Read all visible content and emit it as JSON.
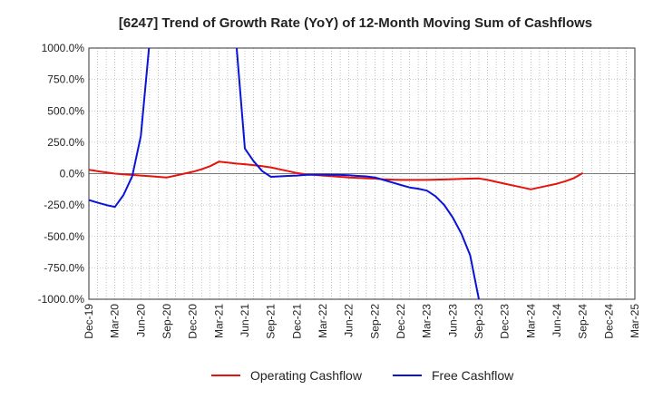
{
  "chart_data": {
    "type": "line",
    "title": "[6247]  Trend of Growth Rate (YoY) of 12-Month Moving Sum of Cashflows",
    "xlabel": "",
    "ylabel": "",
    "x_ticks": [
      "Dec-19",
      "Mar-20",
      "Jun-20",
      "Sep-20",
      "Dec-20",
      "Mar-21",
      "Jun-21",
      "Sep-21",
      "Dec-21",
      "Mar-22",
      "Jun-22",
      "Sep-22",
      "Dec-22",
      "Mar-23",
      "Jun-23",
      "Sep-23",
      "Dec-23",
      "Mar-24",
      "Jun-24",
      "Sep-24",
      "Dec-24",
      "Mar-25"
    ],
    "y_ticks": [
      "1000.0%",
      "750.0%",
      "500.0%",
      "250.0%",
      "0.0%",
      "-250.0%",
      "-500.0%",
      "-750.0%",
      "-1000.0%"
    ],
    "ylim": [
      -1000,
      1000
    ],
    "grid": true,
    "legend_position": "bottom",
    "series": [
      {
        "name": "Operating Cashflow",
        "color": "#e8120c",
        "x": [
          "2019-12",
          "2020-01",
          "2020-02",
          "2020-03",
          "2020-04",
          "2020-05",
          "2020-06",
          "2020-07",
          "2020-08",
          "2020-09",
          "2020-10",
          "2020-11",
          "2020-12",
          "2021-01",
          "2021-02",
          "2021-03",
          "2021-04",
          "2021-05",
          "2021-06",
          "2021-07",
          "2021-08",
          "2021-09",
          "2021-10",
          "2021-11",
          "2021-12",
          "2022-01",
          "2022-02",
          "2022-03",
          "2022-04",
          "2022-05",
          "2022-06",
          "2022-07",
          "2022-08",
          "2022-09",
          "2022-10",
          "2022-11",
          "2022-12",
          "2023-01",
          "2023-02",
          "2023-03",
          "2023-04",
          "2023-05",
          "2023-06",
          "2023-07",
          "2023-08",
          "2023-09",
          "2023-10",
          "2023-11",
          "2023-12",
          "2024-01",
          "2024-02",
          "2024-03",
          "2024-04",
          "2024-05",
          "2024-06",
          "2024-07",
          "2024-08",
          "2024-09"
        ],
        "values": [
          30,
          20,
          10,
          0,
          -5,
          -10,
          -15,
          -20,
          -25,
          -30,
          -15,
          0,
          15,
          35,
          60,
          95,
          88,
          80,
          75,
          68,
          60,
          50,
          35,
          20,
          5,
          -5,
          -10,
          -15,
          -20,
          -25,
          -30,
          -33,
          -37,
          -40,
          -45,
          -48,
          -50,
          -50,
          -50,
          -50,
          -48,
          -46,
          -44,
          -42,
          -40,
          -38,
          -50,
          -65,
          -80,
          -95,
          -110,
          -125,
          -110,
          -95,
          -80,
          -60,
          -35,
          5
        ]
      },
      {
        "name": "Free Cashflow",
        "color": "#0a14d8",
        "x": [
          "2019-12",
          "2020-01",
          "2020-02",
          "2020-03",
          "2020-04",
          "2020-05",
          "2020-06",
          "2020-07",
          "2021-05",
          "2021-06",
          "2021-07",
          "2021-08",
          "2021-09",
          "2021-10",
          "2021-11",
          "2021-12",
          "2022-01",
          "2022-02",
          "2022-03",
          "2022-04",
          "2022-05",
          "2022-06",
          "2022-07",
          "2022-08",
          "2022-09",
          "2022-10",
          "2022-11",
          "2022-12",
          "2023-01",
          "2023-02",
          "2023-03",
          "2023-04",
          "2023-05",
          "2023-06",
          "2023-07",
          "2023-08",
          "2023-09",
          "2023-10"
        ],
        "values": [
          -210,
          -230,
          -250,
          -265,
          -170,
          -20,
          300,
          1050,
          1050,
          200,
          100,
          20,
          -25,
          -22,
          -18,
          -15,
          -10,
          -8,
          -8,
          -9,
          -10,
          -13,
          -18,
          -22,
          -30,
          -50,
          -70,
          -90,
          -110,
          -120,
          -135,
          -180,
          -250,
          -350,
          -480,
          -650,
          -1000,
          -1080
        ]
      }
    ]
  }
}
